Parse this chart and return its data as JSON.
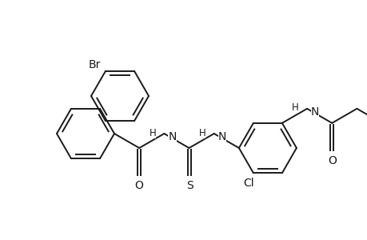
{
  "bg_color": "#ffffff",
  "line_color": "#1a1a1a",
  "line_width": 1.4,
  "font_size": 9.5,
  "figsize": [
    4.6,
    3.0
  ],
  "dpi": 100,
  "xlim": [
    0,
    460
  ],
  "ylim": [
    0,
    300
  ]
}
